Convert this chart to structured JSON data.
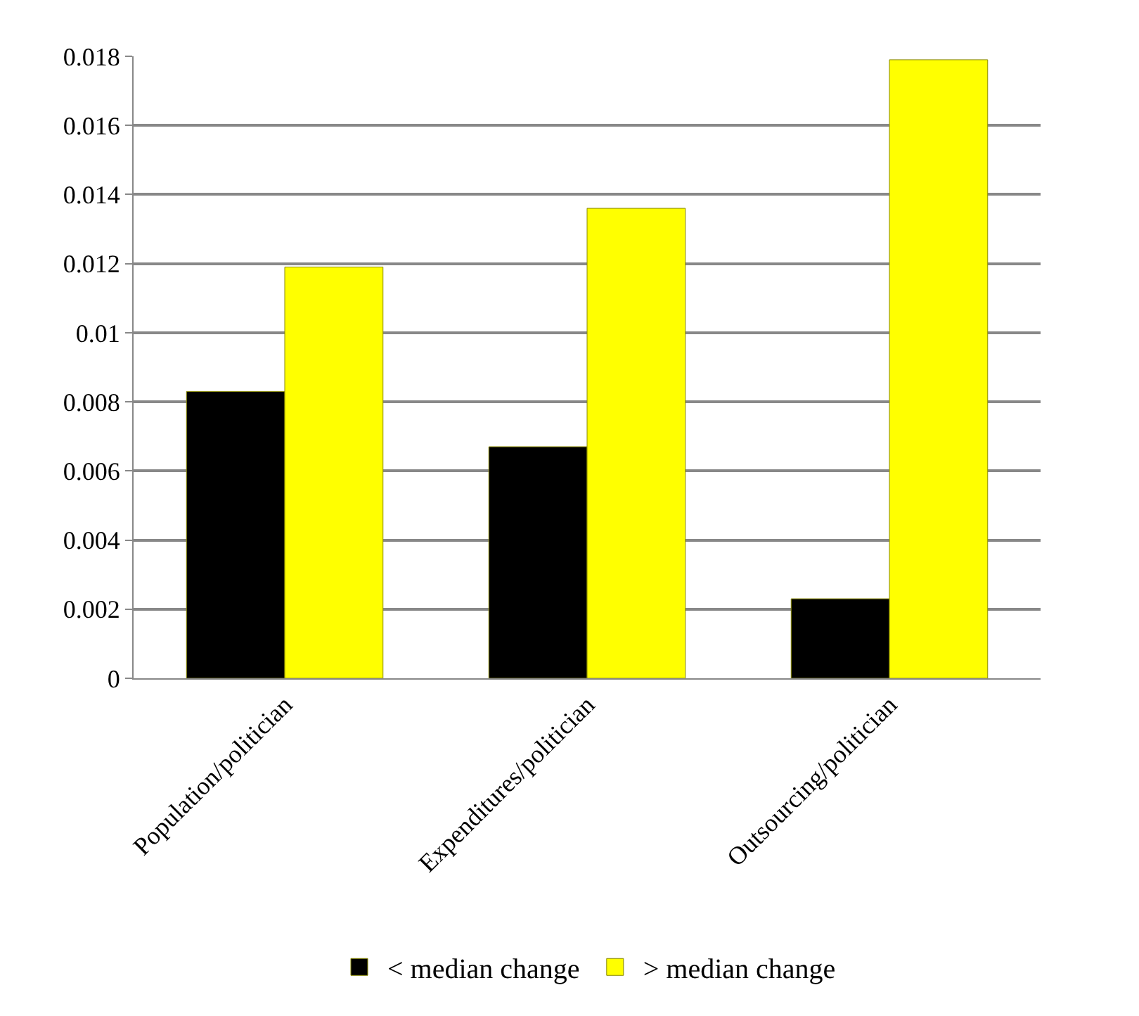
{
  "chart_data": {
    "type": "bar",
    "categories": [
      "Population/politician",
      "Expenditures/politician",
      "Outsourcing/politician"
    ],
    "series": [
      {
        "name": "< median change",
        "color": "#000000",
        "values": [
          0.0083,
          0.0067,
          0.0023
        ]
      },
      {
        "name": "> median change",
        "color": "#ffff00",
        "values": [
          0.0119,
          0.0136,
          0.0179
        ]
      }
    ],
    "ylim": [
      0,
      0.018
    ],
    "yticks": [
      0,
      0.002,
      0.004,
      0.006,
      0.008,
      0.01,
      0.012,
      0.014,
      0.016,
      0.018
    ],
    "grid": "y",
    "legend": "bottom"
  }
}
